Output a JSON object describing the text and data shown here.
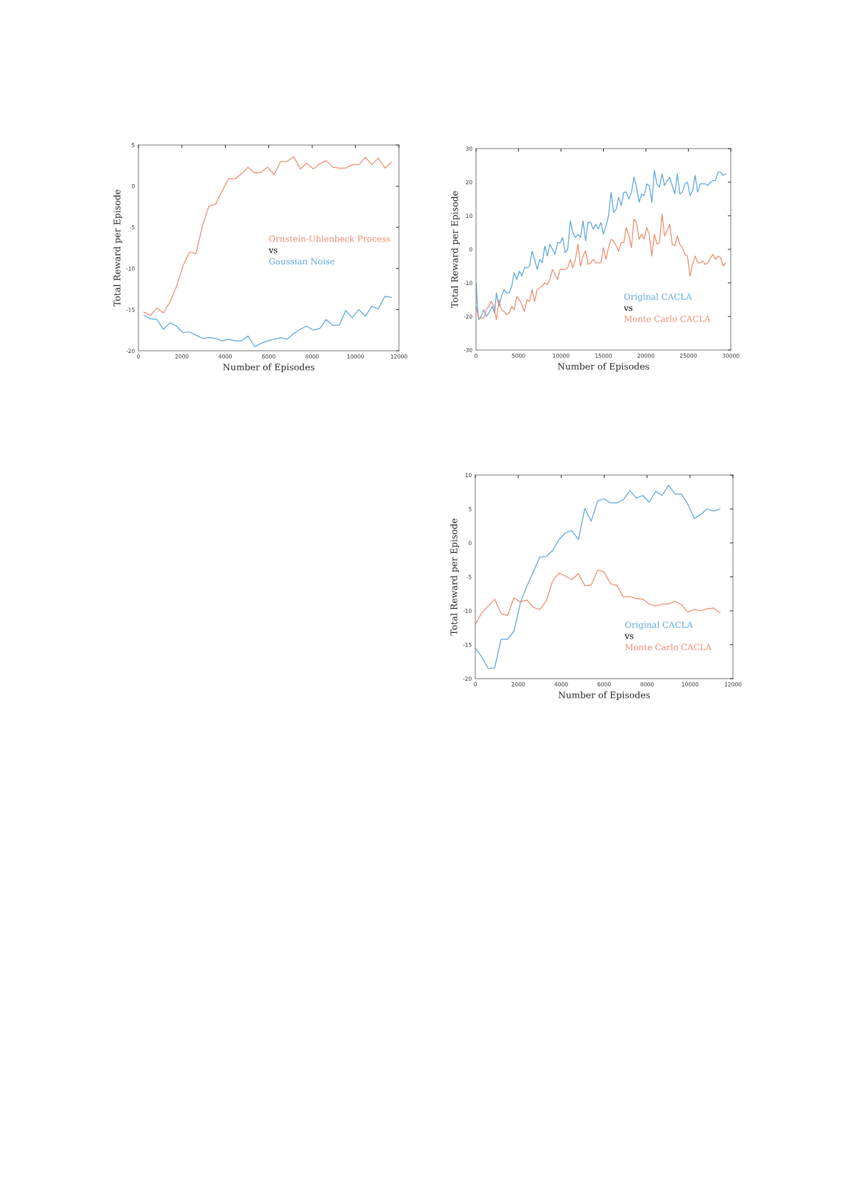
{
  "chart_data": [
    {
      "type": "line",
      "xlabel": "Number of Episodes",
      "ylabel": "Total Reward per Episode",
      "xlim": [
        0,
        12000
      ],
      "ylim": [
        -20,
        5
      ],
      "xticks": [
        0,
        2000,
        4000,
        6000,
        8000,
        10000,
        12000
      ],
      "yticks": [
        -20,
        -15,
        -10,
        -5,
        0,
        5
      ],
      "grid": false,
      "annotations": [
        "vs"
      ],
      "x": [
        250,
        550,
        850,
        1150,
        1450,
        1750,
        2050,
        2350,
        2650,
        2950,
        3250,
        3550,
        3850,
        4150,
        4450,
        4750,
        5050,
        5350,
        5650,
        5950,
        6250,
        6550,
        6850,
        7150,
        7450,
        7750,
        8050,
        8350,
        8650,
        8950,
        9250,
        9550,
        9850,
        10150,
        10450,
        10750,
        11050,
        11350,
        11650
      ],
      "series": [
        {
          "name": "Ornstein-Uhlenbeck Process",
          "color": "#ee8a6a",
          "values": [
            -15.3,
            -15.7,
            -14.8,
            -15.4,
            -14.1,
            -12.2,
            -9.7,
            -8.0,
            -8.2,
            -4.8,
            -2.4,
            -2.2,
            -0.6,
            0.9,
            0.9,
            1.5,
            2.3,
            1.6,
            1.7,
            2.3,
            1.4,
            3.0,
            3.0,
            3.6,
            2.1,
            2.8,
            2.1,
            2.7,
            3.1,
            2.3,
            2.2,
            2.2,
            2.6,
            2.6,
            3.5,
            2.6,
            3.4,
            2.2,
            2.9
          ]
        },
        {
          "name": "Gaussian Noise",
          "color": "#5aa5dc",
          "values": [
            -15.7,
            -16.1,
            -16.2,
            -17.4,
            -16.6,
            -17.0,
            -17.8,
            -17.7,
            -18.1,
            -18.5,
            -18.4,
            -18.5,
            -18.8,
            -18.6,
            -18.8,
            -18.8,
            -18.2,
            -19.5,
            -19.1,
            -18.8,
            -18.6,
            -18.4,
            -18.6,
            -17.9,
            -17.4,
            -17.0,
            -17.5,
            -17.3,
            -16.2,
            -16.9,
            -16.9,
            -15.1,
            -16.0,
            -15.0,
            -15.8,
            -14.6,
            -14.9,
            -13.4,
            -13.5
          ]
        }
      ]
    },
    {
      "type": "line",
      "xlabel": "Number of Episodes",
      "ylabel": "Total Reward per Episode",
      "xlim": [
        0,
        30000
      ],
      "ylim": [
        -30,
        30
      ],
      "xticks": [
        0,
        5000,
        10000,
        15000,
        20000,
        25000,
        30000
      ],
      "yticks": [
        -30,
        -20,
        -10,
        0,
        10,
        20,
        30
      ],
      "grid": false,
      "annotations": [
        "vs"
      ],
      "series": [
        {
          "name": "Original CACLA",
          "color": "#5aa5dc",
          "x": [
            0,
            300,
            600,
            900,
            1200,
            1500,
            1900,
            2200,
            2400,
            2700,
            3000,
            3300,
            3600,
            3900,
            4200,
            4500,
            4800,
            5100,
            5400,
            5700,
            6000,
            6300,
            6600,
            6900,
            7200,
            7500,
            7800,
            8100,
            8400,
            8700,
            9000,
            9300,
            9600,
            9900,
            10200,
            10500,
            10800,
            11100,
            11400,
            11700,
            12000,
            12300,
            12600,
            12900,
            13200,
            13500,
            13800,
            14100,
            14400,
            14700,
            15000,
            15300,
            15600,
            15900,
            16200,
            16500,
            16800,
            17100,
            17400,
            17700,
            18000,
            18300,
            18600,
            18900,
            19200,
            19500,
            19800,
            20100,
            20400,
            20700,
            21000,
            21300,
            21600,
            21900,
            22200,
            22500,
            22800,
            23100,
            23400,
            23700,
            24000,
            24300,
            24600,
            24900,
            25200,
            25500,
            25800,
            26100,
            26400,
            26700,
            27000,
            27300,
            27600,
            27900,
            28200,
            28500,
            28800,
            29100,
            29400
          ],
          "values": [
            -10,
            -21,
            -20,
            -18,
            -20,
            -19,
            -17,
            -19,
            -13,
            -17,
            -14,
            -12,
            -13,
            -13,
            -11,
            -7,
            -9,
            -6.5,
            -8,
            -5.5,
            -5.5,
            -5,
            -0.5,
            -3,
            -6,
            -3,
            -4,
            1,
            -2,
            1.5,
            0,
            -1.5,
            2,
            2,
            3.5,
            -1,
            0,
            8.5,
            5,
            3.5,
            4.5,
            3.5,
            8.5,
            2.5,
            8,
            8,
            6,
            7.5,
            6,
            8,
            4.5,
            7,
            10,
            17,
            11,
            12,
            15.5,
            13,
            17,
            17,
            15,
            17,
            21.5,
            18.5,
            14,
            16.5,
            16,
            19.5,
            19,
            14,
            23.5,
            19.5,
            18.5,
            22.5,
            19,
            20.5,
            21.5,
            19,
            16.5,
            22.5,
            16.5,
            17,
            19.5,
            20,
            16,
            17.5,
            22,
            17,
            19.5,
            19.5,
            19.5,
            19,
            20,
            20.5,
            20.5,
            23,
            23,
            22,
            22.5
          ]
        },
        {
          "name": "Monte Carlo CACLA",
          "color": "#ee8a6a",
          "x": [
            0,
            300,
            600,
            900,
            1200,
            1500,
            1800,
            2100,
            2400,
            2700,
            3000,
            3300,
            3600,
            3900,
            4200,
            4500,
            4800,
            5100,
            5400,
            5700,
            6000,
            6300,
            6600,
            6900,
            7200,
            7500,
            7800,
            8100,
            8400,
            8700,
            9000,
            9300,
            9600,
            9900,
            10200,
            10500,
            10800,
            11100,
            11400,
            11700,
            12000,
            12300,
            12600,
            12900,
            13200,
            13500,
            13800,
            14100,
            14400,
            14700,
            15000,
            15300,
            15600,
            15900,
            16200,
            16500,
            16800,
            17100,
            17400,
            17700,
            18000,
            18300,
            18600,
            18900,
            19200,
            19500,
            19800,
            20100,
            20400,
            20700,
            21000,
            21300,
            21600,
            21900,
            22200,
            22500,
            22800,
            23100,
            23400,
            23700,
            24000,
            24300,
            24600,
            24900,
            25200,
            25500,
            25800,
            26100,
            26400,
            26700,
            27000,
            27300,
            27600,
            27900,
            28200,
            28500,
            28800,
            29100,
            29400
          ],
          "values": [
            -17,
            -20.5,
            -20.5,
            -20.5,
            -18,
            -17,
            -15.5,
            -17,
            -21,
            -15,
            -18,
            -18.5,
            -19.5,
            -19,
            -17,
            -18,
            -14,
            -15,
            -16.5,
            -18.5,
            -15,
            -15.5,
            -12,
            -15.5,
            -12,
            -11.5,
            -11,
            -10,
            -10.5,
            -9,
            -6,
            -7.5,
            -9,
            -6,
            -6,
            -6,
            -5.5,
            -3,
            -5.5,
            -3,
            1.5,
            -5,
            -2,
            -0.5,
            -4.5,
            -4,
            -3,
            -4,
            -4,
            -4,
            0.5,
            -3,
            0.5,
            3,
            2.5,
            1,
            -0.5,
            2,
            2,
            6.5,
            4,
            0.5,
            9,
            8,
            3,
            4.5,
            3,
            6.5,
            4.5,
            -2,
            4.5,
            1.5,
            2,
            10.5,
            4,
            5.5,
            7.5,
            1.5,
            1,
            4,
            1.5,
            0.5,
            -1.5,
            -2,
            -8,
            -4.5,
            -2,
            -4,
            -4,
            -3.5,
            -4.5,
            -4,
            -2.5,
            -1.5,
            -3,
            -2,
            -2.5,
            -5,
            -4
          ]
        }
      ]
    },
    {
      "type": "line",
      "xlabel": "Number of Episodes",
      "ylabel": "Total Reward per Episode",
      "xlim": [
        0,
        12000
      ],
      "ylim": [
        -20,
        10
      ],
      "xticks": [
        0,
        2000,
        4000,
        6000,
        8000,
        10000,
        12000
      ],
      "yticks": [
        -20,
        -15,
        -10,
        -5,
        0,
        5,
        10
      ],
      "grid": false,
      "annotations": [
        "vs"
      ],
      "x": [
        0,
        300,
        600,
        900,
        1200,
        1500,
        1800,
        2100,
        2400,
        2700,
        3000,
        3300,
        3600,
        3900,
        4200,
        4500,
        4800,
        5100,
        5400,
        5700,
        6000,
        6300,
        6600,
        6900,
        7200,
        7500,
        7800,
        8100,
        8400,
        8700,
        9000,
        9300,
        9600,
        9900,
        10200,
        10500,
        10800,
        11100,
        11400
      ],
      "series": [
        {
          "name": "Original CACLA",
          "color": "#5aa5dc",
          "values": [
            -15.5,
            -16.8,
            -18.5,
            -18.4,
            -14.2,
            -14.2,
            -13.0,
            -8.8,
            -6.4,
            -4.3,
            -2.1,
            -2.0,
            -1.1,
            0.5,
            1.5,
            1.8,
            0.5,
            5.1,
            3.2,
            6.2,
            6.5,
            5.9,
            5.9,
            6.4,
            7.7,
            6.6,
            7.0,
            6.0,
            7.6,
            7.0,
            8.5,
            7.2,
            7.2,
            5.7,
            3.6,
            4.2,
            5.0,
            4.7,
            5.0
          ]
        },
        {
          "name": "Monte Carlo CACLA",
          "color": "#ee8a6a",
          "values": [
            -12.0,
            -10.3,
            -9.3,
            -8.3,
            -10.4,
            -10.7,
            -8.1,
            -8.7,
            -8.4,
            -9.5,
            -9.8,
            -8.6,
            -5.6,
            -4.4,
            -4.9,
            -5.4,
            -4.5,
            -6.3,
            -6.2,
            -4.0,
            -4.3,
            -6.0,
            -6.3,
            -8.0,
            -7.9,
            -8.2,
            -8.3,
            -9.0,
            -9.3,
            -9.0,
            -9.0,
            -8.6,
            -9.1,
            -10.2,
            -9.8,
            -10.0,
            -9.7,
            -9.6,
            -10.3
          ]
        }
      ]
    }
  ]
}
